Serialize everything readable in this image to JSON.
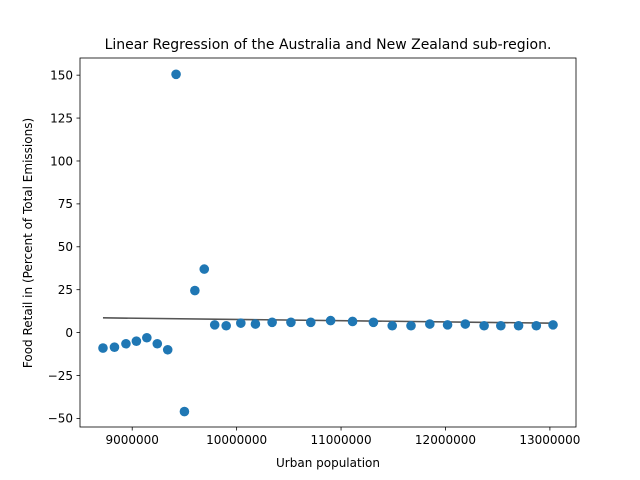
{
  "chart_data": {
    "type": "scatter",
    "title": "Linear Regression of the Australia and New Zealand sub-region.",
    "xlabel": "Urban population",
    "ylabel": "Food Retail in (Percent of Total Emissions)",
    "xlim": [
      8500000,
      13250000
    ],
    "ylim": [
      -55,
      160
    ],
    "xticks": [
      9000000,
      10000000,
      11000000,
      12000000,
      13000000
    ],
    "xtick_labels": [
      "9000000",
      "10000000",
      "11000000",
      "12000000",
      "13000000"
    ],
    "yticks": [
      -50,
      -25,
      0,
      25,
      50,
      75,
      100,
      125,
      150
    ],
    "ytick_labels": [
      "−50",
      "−25",
      "0",
      "25",
      "50",
      "75",
      "100",
      "125",
      "150"
    ],
    "grid": false,
    "point_color": "#1f77b4",
    "line_color": "#555555",
    "series": [
      {
        "kind": "scatter",
        "x": [
          8720000,
          8830000,
          8940000,
          9040000,
          9140000,
          9240000,
          9340000,
          9420000,
          9500000,
          9600000,
          9690000,
          9790000,
          9900000,
          10040000,
          10180000,
          10340000,
          10520000,
          10710000,
          10900000,
          11110000,
          11310000,
          11490000,
          11670000,
          11850000,
          12020000,
          12190000,
          12370000,
          12530000,
          12700000,
          12870000,
          13030000
        ],
        "y": [
          -9,
          -8.5,
          -6.5,
          -5,
          -3,
          -6.5,
          -10,
          150.5,
          -46,
          24.5,
          37,
          4.5,
          4,
          5.5,
          5,
          6,
          6,
          6,
          7,
          6.5,
          6,
          4,
          4,
          5,
          4.5,
          5,
          4,
          4,
          4,
          4,
          4.5
        ]
      },
      {
        "kind": "line",
        "x": [
          8720000,
          13030000
        ],
        "y": [
          8.6,
          5.5
        ]
      }
    ]
  }
}
